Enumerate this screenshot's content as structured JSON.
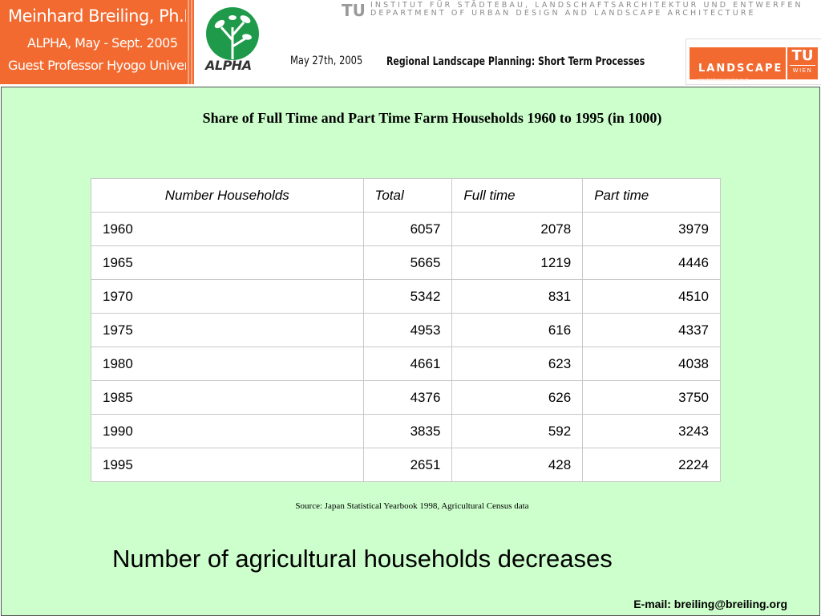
{
  "header": {
    "author_lines": [
      "Meinhard Breiling, Ph.D.",
      "ALPHA, May - Sept. 2005",
      "Guest Professor Hyogo University"
    ],
    "alpha_logo_text": "ALPHA",
    "institute_mark": "TU",
    "institute_line1": "INSTITUT FÜR STÄDTEBAU, LANDSCHAFTSARCHITEKTUR UND ENTWERFEN",
    "institute_line2": "DEPARTMENT OF URBAN DESIGN AND LANDSCAPE ARCHITECTURE",
    "date": "May 27th, 2005",
    "topic": "Regional Landscape Planning: Short Term Processes",
    "landscape_logo_text": "LANDSCAPE",
    "landscape_logo_url": "www.landscape.tuwien.ac.at",
    "tu_logo_top": "TU",
    "tu_logo_bottom": "WIEN"
  },
  "colors": {
    "header_orange": "#f26a30",
    "content_background": "#ccffcc",
    "alpha_green": "#1f9a4a"
  },
  "content": {
    "title": "Share of Full Time and Part Time Farm Households 1960 to 1995 (in 1000)",
    "table": {
      "headers": [
        "Number Households",
        "Total",
        "Full time",
        "Part time"
      ],
      "rows": [
        [
          "1960",
          "6057",
          "2078",
          "3979"
        ],
        [
          "1965",
          "5665",
          "1219",
          "4446"
        ],
        [
          "1970",
          "5342",
          "831",
          "4510"
        ],
        [
          "1975",
          "4953",
          "616",
          "4337"
        ],
        [
          "1980",
          "4661",
          "623",
          "4038"
        ],
        [
          "1985",
          "4376",
          "626",
          "3750"
        ],
        [
          "1990",
          "3835",
          "592",
          "3243"
        ],
        [
          "1995",
          "2651",
          "428",
          "2224"
        ]
      ]
    },
    "source": "Source: Japan Statistical Yearbook 1998, Agricultural Census data",
    "headline": "Number of agricultural households decreases",
    "email": "E-mail: breiling@breiling.org"
  }
}
